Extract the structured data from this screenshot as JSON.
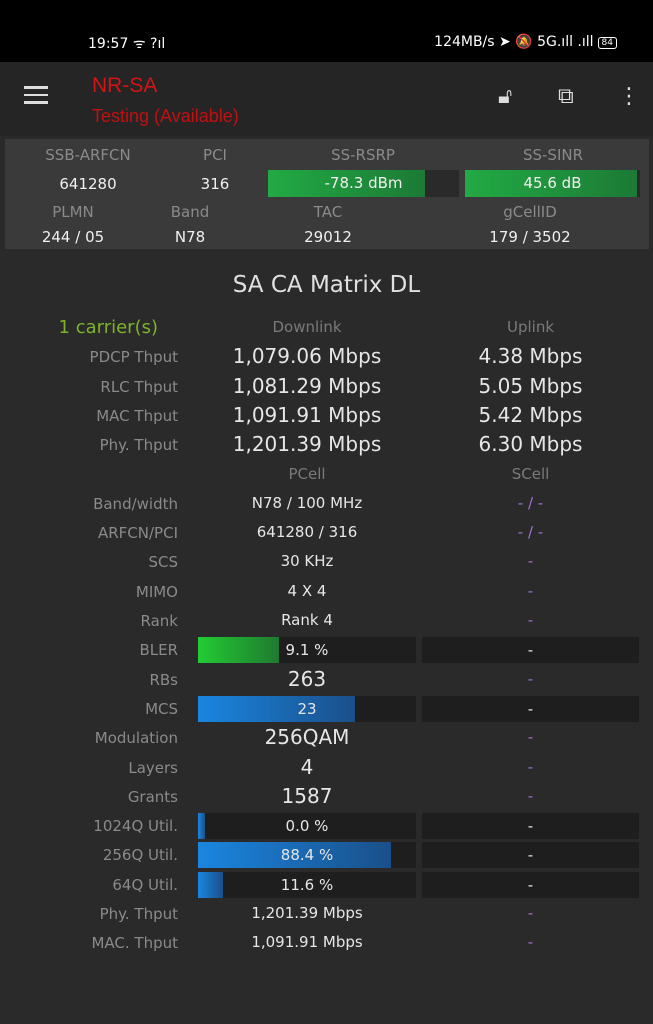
{
  "status_bar": {
    "time": "19:57",
    "left_icons": "ᯤ ?ıl",
    "right_text": "124MB/s",
    "right_icons": "➤ 🔕 5G.ıll .ıll",
    "battery": "84"
  },
  "app_bar": {
    "title": "NR-SA",
    "subtitle": "Testing (Available)",
    "icons": [
      "menu-icon",
      "lock-open-icon",
      "open-external-icon",
      "more-vert-icon"
    ]
  },
  "summary": {
    "ssb_arfcn": {
      "label": "SSB-ARFCN",
      "value": "641280"
    },
    "pci": {
      "label": "PCI",
      "value": "316"
    },
    "ss_rsrp": {
      "label": "SS-RSRP",
      "value": "-78.3 dBm",
      "fill": 0.82
    },
    "ss_sinr": {
      "label": "SS-SINR",
      "value": "45.6 dB",
      "fill": 0.98
    },
    "plmn": {
      "label": "PLMN",
      "value": "244 / 05"
    },
    "band": {
      "label": "Band",
      "value": "N78"
    },
    "tac": {
      "label": "TAC",
      "value": "29012"
    },
    "gcellid": {
      "label": "gCellID",
      "value": "179 / 3502"
    }
  },
  "matrix": {
    "title": "SA CA Matrix DL",
    "carriers": "1 carrier(s)",
    "downlink": "Downlink",
    "uplink": "Uplink",
    "throughput": [
      {
        "label": "PDCP Thput",
        "dl": "1,079.06 Mbps",
        "ul": "4.38 Mbps"
      },
      {
        "label": "RLC Thput",
        "dl": "1,081.29 Mbps",
        "ul": "5.05 Mbps"
      },
      {
        "label": "MAC Thput",
        "dl": "1,091.91 Mbps",
        "ul": "5.42 Mbps"
      },
      {
        "label": "Phy. Thput",
        "dl": "1,201.39 Mbps",
        "ul": "6.30 Mbps"
      }
    ],
    "pcell": "PCell",
    "scell": "SCell",
    "rows": [
      {
        "label": "Band/width",
        "p": "N78 / 100 MHz",
        "s": "- / -"
      },
      {
        "label": "ARFCN/PCI",
        "p": "641280 / 316",
        "s": "- / -"
      },
      {
        "label": "SCS",
        "p": "30 KHz",
        "s": "-"
      },
      {
        "label": "MIMO",
        "p": "4 X 4",
        "s": "-"
      },
      {
        "label": "Rank",
        "p": "Rank 4",
        "s": "-"
      },
      {
        "label": "BLER",
        "p": "9.1 %",
        "s": "-",
        "bar": true,
        "fill": 0.37,
        "color": "green"
      },
      {
        "label": "RBs",
        "p": "263",
        "s": "-",
        "big": true
      },
      {
        "label": "MCS",
        "p": "23",
        "s": "-",
        "bar": true,
        "fill": 0.72,
        "color": "blue"
      },
      {
        "label": "Modulation",
        "p": "256QAM",
        "s": "-",
        "big": true
      },
      {
        "label": "Layers",
        "p": "4",
        "s": "-",
        "big": true
      },
      {
        "label": "Grants",
        "p": "1587",
        "s": "-",
        "big": true
      },
      {
        "label": "1024Q Util.",
        "p": "0.0 %",
        "s": "-",
        "bar": true,
        "fill": 0.03,
        "color": "blue"
      },
      {
        "label": "256Q Util.",
        "p": "88.4 %",
        "s": "-",
        "bar": true,
        "fill": 0.884,
        "color": "blue"
      },
      {
        "label": "64Q Util.",
        "p": "11.6 %",
        "s": "-",
        "bar": true,
        "fill": 0.116,
        "color": "blue"
      },
      {
        "label": "Phy. Thput",
        "p": "1,201.39 Mbps",
        "s": "-"
      },
      {
        "label": "MAC. Thput",
        "p": "1,091.91 Mbps",
        "s": "-"
      }
    ]
  },
  "colors": {
    "green": "#22cc33",
    "blue": "#1a86e0",
    "title_red": "#d41414",
    "carrier_green": "#7cb32a",
    "scell_purple": "#a070d0"
  }
}
